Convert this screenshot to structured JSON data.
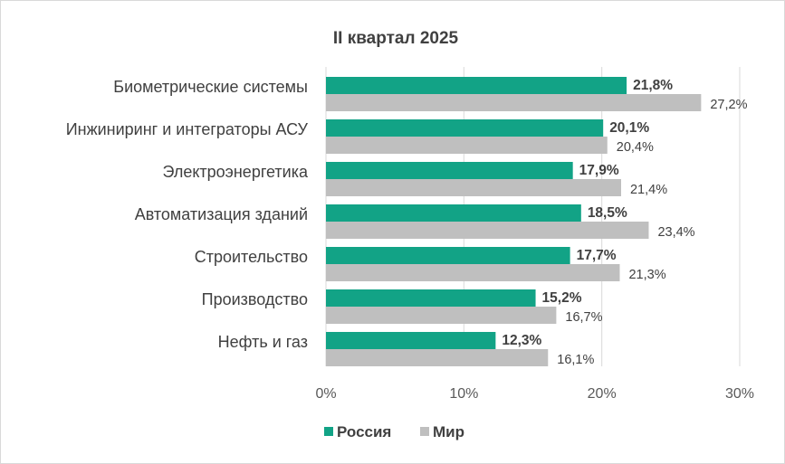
{
  "chart_data": {
    "type": "bar",
    "orientation": "horizontal",
    "title": "II квартал 2025",
    "categories": [
      "Биометрические системы",
      "Инжиниринг и интеграторы АСУ",
      "Электроэнергетика",
      "Автоматизация зданий",
      "Строительство",
      "Производство",
      "Нефть и газ"
    ],
    "series": [
      {
        "name": "Россия",
        "values": [
          21.8,
          20.1,
          17.9,
          18.5,
          17.7,
          15.2,
          12.3
        ],
        "labels": [
          "21,8%",
          "20,1%",
          "17,9%",
          "18,5%",
          "17,7%",
          "15,2%",
          "12,3%"
        ],
        "color": "#12a386"
      },
      {
        "name": "Мир",
        "values": [
          27.2,
          20.4,
          21.4,
          23.4,
          21.3,
          16.7,
          16.1
        ],
        "labels": [
          "27,2%",
          "20,4%",
          "21,4%",
          "23,4%",
          "21,3%",
          "16,7%",
          "16,1%"
        ],
        "color": "#bfbfbf"
      }
    ],
    "xlim": [
      0,
      30
    ],
    "xticks": [
      0,
      10,
      20,
      30
    ],
    "xtick_labels": [
      "0%",
      "10%",
      "20%",
      "30%"
    ],
    "xlabel": "",
    "ylabel": "",
    "grid": "vertical",
    "legend_position": "bottom"
  }
}
